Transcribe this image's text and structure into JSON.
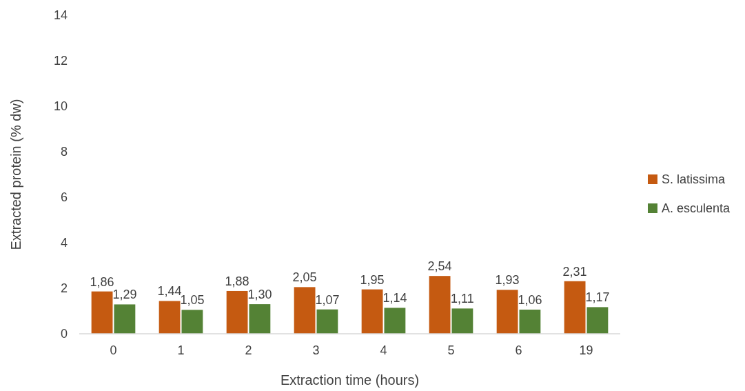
{
  "chart_data": {
    "type": "bar",
    "xlabel": "Extraction time (hours)",
    "ylabel": "Extracted protein (% dw)",
    "categories": [
      "0",
      "1",
      "2",
      "3",
      "4",
      "5",
      "6",
      "19"
    ],
    "series": [
      {
        "name": "S. latissima",
        "color": "#c55a11",
        "values": [
          1.86,
          1.44,
          1.88,
          2.05,
          1.95,
          2.54,
          1.93,
          2.31
        ],
        "value_labels": [
          "1,86",
          "1,44",
          "1,88",
          "2,05",
          "1,95",
          "2,54",
          "1,93",
          "2,31"
        ]
      },
      {
        "name": "A. esculenta",
        "color": "#548235",
        "values": [
          1.29,
          1.05,
          1.3,
          1.07,
          1.14,
          1.11,
          1.06,
          1.17
        ],
        "value_labels": [
          "1,29",
          "1,05",
          "1,30",
          "1,07",
          "1,14",
          "1,11",
          "1,06",
          "1,17"
        ]
      }
    ],
    "ylim": [
      0,
      14
    ],
    "yticks": [
      0,
      2,
      4,
      6,
      8,
      10,
      12,
      14
    ],
    "legend": "right"
  }
}
